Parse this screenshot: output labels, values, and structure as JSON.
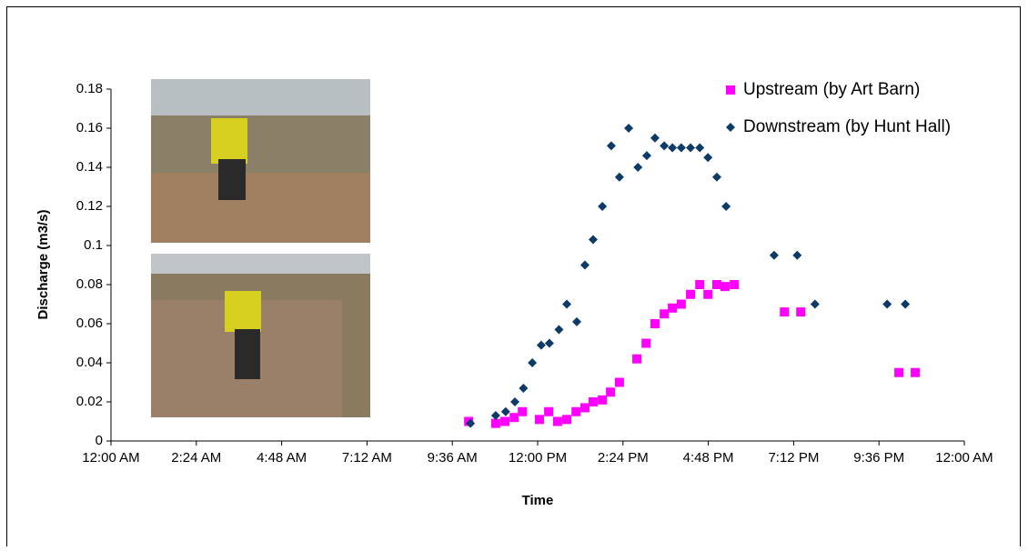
{
  "chart_data": {
    "type": "scatter",
    "x_label": "Time",
    "y_label": "Discharge (m3/s)",
    "xlim": [
      0,
      24
    ],
    "xticks": [
      {
        "value": 0,
        "label": "12:00 AM"
      },
      {
        "value": 2.4,
        "label": "2:24 AM"
      },
      {
        "value": 4.8,
        "label": "4:48 AM"
      },
      {
        "value": 7.2,
        "label": "7:12 AM"
      },
      {
        "value": 9.6,
        "label": "9:36 AM"
      },
      {
        "value": 12,
        "label": "12:00 PM"
      },
      {
        "value": 14.4,
        "label": "2:24 PM"
      },
      {
        "value": 16.8,
        "label": "4:48 PM"
      },
      {
        "value": 19.2,
        "label": "7:12 PM"
      },
      {
        "value": 21.6,
        "label": "9:36 PM"
      },
      {
        "value": 24,
        "label": "12:00 AM"
      }
    ],
    "ylim": [
      0,
      0.18
    ],
    "yticks": [
      0,
      0.02,
      0.04,
      0.06,
      0.08,
      0.1,
      0.12,
      0.14,
      0.16,
      0.18
    ],
    "legend_position": "top-right",
    "series": [
      {
        "name": "Upstream (by Art Barn)",
        "color": "#ff00ff",
        "marker": "square",
        "x": [
          10.06,
          10.82,
          11.08,
          11.34,
          11.57,
          12.05,
          12.31,
          12.56,
          12.82,
          13.08,
          13.33,
          13.56,
          13.82,
          14.05,
          14.3,
          14.79,
          15.05,
          15.3,
          15.56,
          15.79,
          16.04,
          16.3,
          16.56,
          16.79,
          17.04,
          17.27,
          17.53,
          18.94,
          19.4,
          22.16,
          22.62
        ],
        "values": [
          0.01,
          0.009,
          0.01,
          0.012,
          0.015,
          0.011,
          0.015,
          0.01,
          0.011,
          0.015,
          0.017,
          0.02,
          0.021,
          0.025,
          0.03,
          0.042,
          0.05,
          0.06,
          0.065,
          0.068,
          0.07,
          0.075,
          0.08,
          0.075,
          0.08,
          0.079,
          0.08,
          0.066,
          0.066,
          0.035,
          0.035
        ]
      },
      {
        "name": "Downstream (by Hunt Hall)",
        "color": "#0d3a66",
        "marker": "diamond",
        "x": [
          10.11,
          10.82,
          11.1,
          11.36,
          11.6,
          11.85,
          12.1,
          12.33,
          12.6,
          12.82,
          13.1,
          13.33,
          13.56,
          13.82,
          14.07,
          14.3,
          14.56,
          14.82,
          15.07,
          15.3,
          15.56,
          15.79,
          16.04,
          16.3,
          16.56,
          16.79,
          17.04,
          17.3,
          18.65,
          19.3,
          19.8,
          21.83,
          22.34
        ],
        "values": [
          0.009,
          0.013,
          0.015,
          0.02,
          0.027,
          0.04,
          0.049,
          0.05,
          0.057,
          0.07,
          0.061,
          0.09,
          0.103,
          0.12,
          0.151,
          0.135,
          0.16,
          0.14,
          0.146,
          0.155,
          0.151,
          0.15,
          0.15,
          0.15,
          0.15,
          0.145,
          0.135,
          0.12,
          0.095,
          0.095,
          0.07,
          0.07,
          0.07
        ]
      }
    ]
  }
}
